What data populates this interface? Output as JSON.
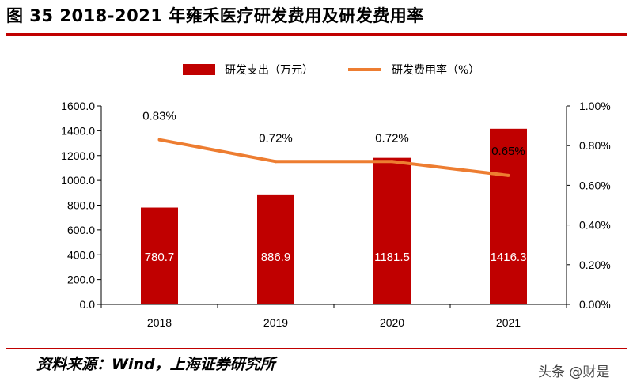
{
  "title": "图 35 2018-2021 年雍禾医疗研发费用及研发费用率",
  "source": "资料来源：Wind，上海证券研究所",
  "watermark": "头条 @财是",
  "colors": {
    "bar": "#c00000",
    "line": "#ed7d31",
    "rule": "#c00000"
  },
  "chart_data": {
    "type": "bar",
    "categories": [
      "2018",
      "2019",
      "2020",
      "2021"
    ],
    "series": [
      {
        "name": "研发支出（万元）",
        "type": "bar",
        "axis": "left",
        "values": [
          780.7,
          886.9,
          1181.5,
          1416.3
        ],
        "labels": [
          "780.7",
          "886.9",
          "1181.5",
          "1416.3"
        ]
      },
      {
        "name": "研发费用率（%）",
        "type": "line",
        "axis": "right",
        "values": [
          0.83,
          0.72,
          0.72,
          0.65
        ],
        "labels": [
          "0.83%",
          "0.72%",
          "0.72%",
          "0.65%"
        ]
      }
    ],
    "y_left": {
      "min": 0,
      "max": 1600,
      "ticks": [
        "0.0",
        "200.0",
        "400.0",
        "600.0",
        "800.0",
        "1000.0",
        "1200.0",
        "1400.0",
        "1600.0"
      ]
    },
    "y_right": {
      "min": 0,
      "max": 1.0,
      "ticks": [
        "0.00%",
        "0.20%",
        "0.40%",
        "0.60%",
        "0.80%",
        "1.00%"
      ]
    },
    "legend_position": "top",
    "grid": false
  }
}
